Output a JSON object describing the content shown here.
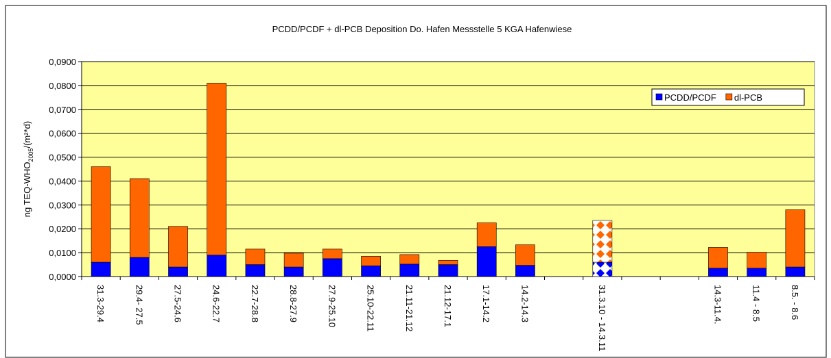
{
  "chart_data": {
    "type": "stacked_bar",
    "title": "PCDD/PCDF + dl-PCB  Deposition Do. Hafen Messstelle 5  KGA Hafenwiese",
    "ylabel": {
      "main": "ng TEQ-WHO",
      "sub": "2005",
      "tail": "/(m²*d)"
    },
    "categories": [
      "31.3-29.4",
      "29.4- 27.5",
      "27.5-24.6",
      "24.6-22.7",
      "22.7-28.8",
      "28.8-27.9",
      "27.9-25.10",
      "25.10-22.11",
      "21.11-21.12",
      "21.12-17.1",
      "17.1-14.2",
      "14.2-14.3",
      null,
      "31.3.10 - 14.3.11",
      null,
      null,
      "14.3-11.4.",
      "11.4 - 8.5",
      "8.5. - 8.6"
    ],
    "series": [
      {
        "name": "PCDD/PCDF",
        "color": "#0000ff",
        "values": [
          0.006,
          0.008,
          0.004,
          0.009,
          0.005,
          0.004,
          0.0075,
          0.0045,
          0.0052,
          0.005,
          0.0125,
          0.0047,
          null,
          0.006,
          null,
          null,
          0.0035,
          0.0035,
          0.004
        ]
      },
      {
        "name": "dl-PCB",
        "color": "#ff6600",
        "values": [
          0.04,
          0.033,
          0.017,
          0.072,
          0.0065,
          0.0058,
          0.004,
          0.004,
          0.004,
          0.0018,
          0.01,
          0.0086,
          null,
          0.0175,
          null,
          null,
          0.0087,
          0.0067,
          0.024
        ]
      }
    ],
    "pattern_categories": [
      13
    ],
    "ylim": [
      0,
      0.09
    ],
    "yticks": [
      {
        "value": 0,
        "label": "0,0000"
      },
      {
        "value": 0.01,
        "label": "0,0100"
      },
      {
        "value": 0.02,
        "label": "0,0200"
      },
      {
        "value": 0.03,
        "label": "0,0300"
      },
      {
        "value": 0.04,
        "label": "0,0400"
      },
      {
        "value": 0.05,
        "label": "0,0500"
      },
      {
        "value": 0.06,
        "label": "0,0600"
      },
      {
        "value": 0.07,
        "label": "0,0700"
      },
      {
        "value": 0.08,
        "label": "0,0800"
      },
      {
        "value": 0.09,
        "label": "0,0900"
      }
    ],
    "grid": true,
    "legend": "top-right",
    "plot_background": "#ffff99"
  }
}
